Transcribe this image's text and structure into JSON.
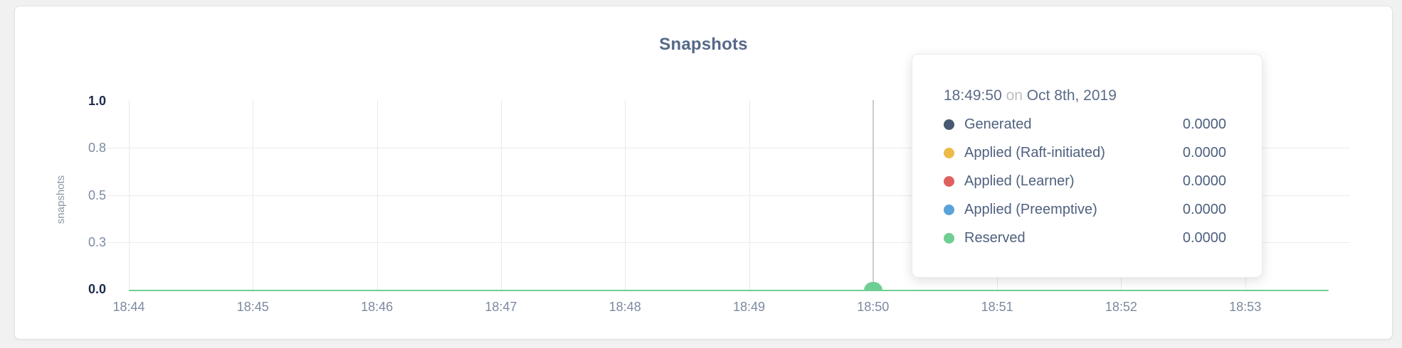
{
  "card": {
    "title": "Snapshots"
  },
  "chart_data": {
    "type": "line",
    "title": "Snapshots",
    "xlabel": "",
    "ylabel": "snapshots",
    "ylim": [
      0.0,
      1.0
    ],
    "grid": true,
    "legend_position": "tooltip-only",
    "x_ticks": [
      "18:44",
      "18:45",
      "18:46",
      "18:47",
      "18:48",
      "18:49",
      "18:50",
      "18:51",
      "18:52",
      "18:53"
    ],
    "y_ticks": [
      {
        "label": "1.0",
        "value": 1.0,
        "strong": true
      },
      {
        "label": "0.8",
        "value": 0.75,
        "strong": false
      },
      {
        "label": "0.5",
        "value": 0.5,
        "strong": false
      },
      {
        "label": "0.3",
        "value": 0.25,
        "strong": false
      },
      {
        "label": "0.0",
        "value": 0.0,
        "strong": true
      }
    ],
    "x_range": [
      "18:44:00",
      "18:53:40"
    ],
    "series": [
      {
        "name": "Generated",
        "color": "#475872",
        "constant_value": 0.0
      },
      {
        "name": "Applied (Raft-initiated)",
        "color": "#edbb4a",
        "constant_value": 0.0
      },
      {
        "name": "Applied (Learner)",
        "color": "#e0605f",
        "constant_value": 0.0
      },
      {
        "name": "Applied (Preemptive)",
        "color": "#5aa3d9",
        "constant_value": 0.0
      },
      {
        "name": "Reserved",
        "color": "#6fce93",
        "constant_value": 0.0
      }
    ],
    "hover": {
      "time": "18:49:50",
      "nearest_tick": "18:50",
      "point_series": "Reserved",
      "point_value": 0.0
    }
  },
  "tooltip": {
    "time": "18:49:50",
    "connector": "on",
    "date": "Oct 8th, 2019",
    "rows": [
      {
        "label": "Generated",
        "value": "0.0000",
        "color": "#475872"
      },
      {
        "label": "Applied (Raft-initiated)",
        "value": "0.0000",
        "color": "#edbb4a"
      },
      {
        "label": "Applied (Learner)",
        "value": "0.0000",
        "color": "#e0605f"
      },
      {
        "label": "Applied (Preemptive)",
        "value": "0.0000",
        "color": "#5aa3d9"
      },
      {
        "label": "Reserved",
        "value": "0.0000",
        "color": "#6fce93"
      }
    ]
  },
  "colors": {
    "page_bg": "#f1f1f2",
    "card_bg": "#ffffff",
    "title_text": "#56688a",
    "tick_text": "#7c8aa1",
    "tick_text_strong": "#1d2b4a",
    "grid_h": "#ececee",
    "grid_v": "#e9e9eb",
    "crosshair": "#cccccd",
    "line_reserved": "#6fce93"
  }
}
